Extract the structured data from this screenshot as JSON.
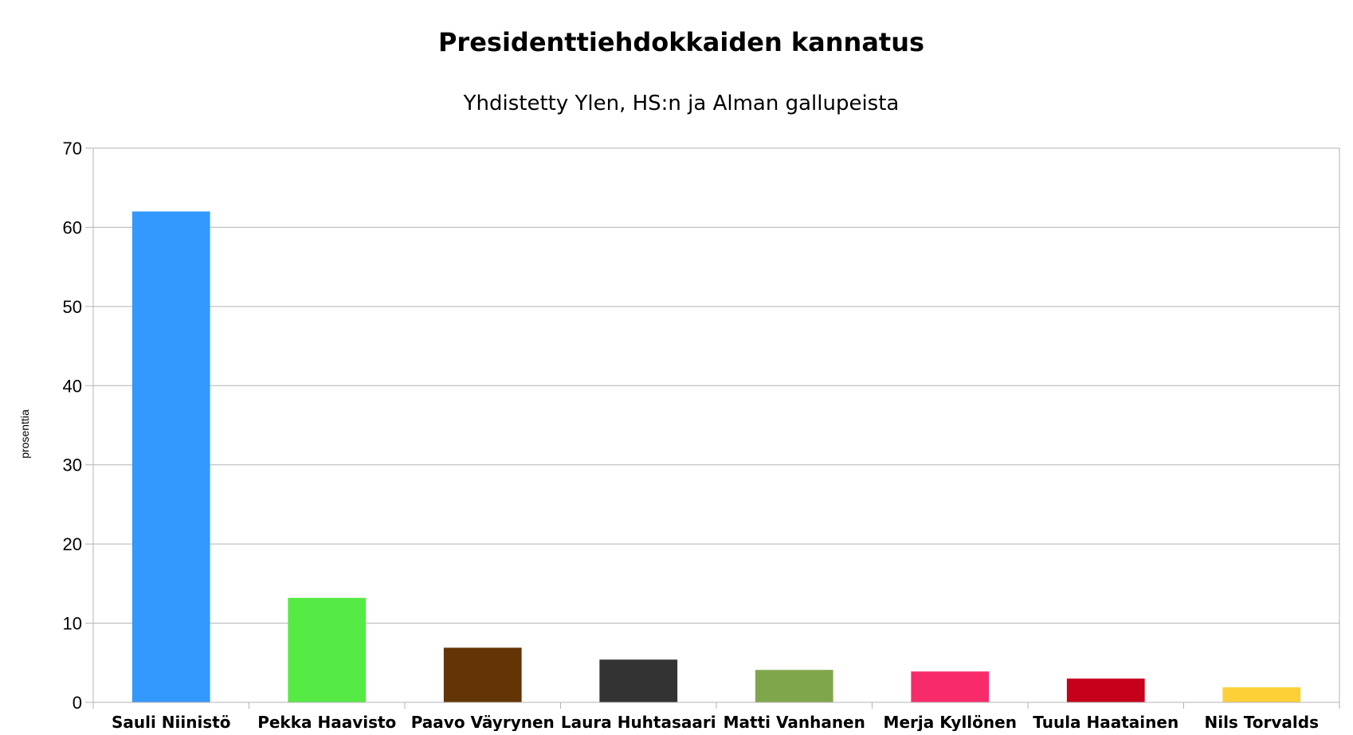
{
  "chart_data": {
    "type": "bar",
    "title": "Presidenttiehdokkaiden kannatus",
    "subtitle": "Yhdistetty Ylen, HS:n ja Alman gallupeista",
    "xlabel": "",
    "ylabel": "prosenttia",
    "ylim": [
      0,
      70
    ],
    "yticks": [
      0,
      10,
      20,
      30,
      40,
      50,
      60,
      70
    ],
    "grid": true,
    "legend": "none",
    "categories": [
      "Sauli Niinistö",
      "Pekka Haavisto",
      "Paavo Väyrynen",
      "Laura Huhtasaari",
      "Matti Vanhanen",
      "Merja Kyllönen",
      "Tuula Haatainen",
      "Nils Torvalds"
    ],
    "values": [
      62,
      13.2,
      6.9,
      5.4,
      4.1,
      3.9,
      3.0,
      1.9
    ],
    "colors": [
      "#3399ff",
      "#55ea44",
      "#623406",
      "#333333",
      "#80a64b",
      "#f72b6a",
      "#c6001b",
      "#fdd038"
    ]
  }
}
